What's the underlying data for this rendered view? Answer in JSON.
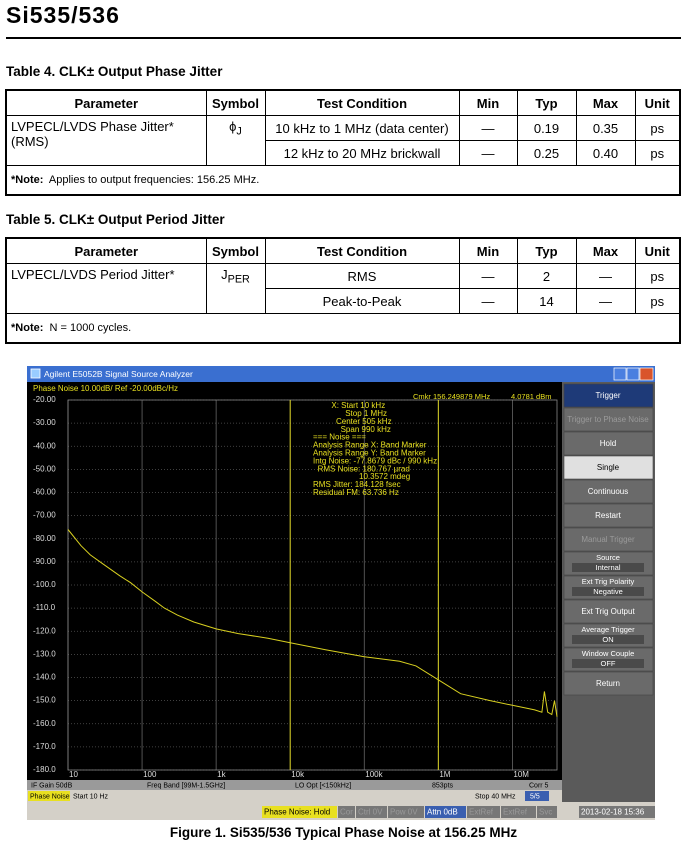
{
  "header": {
    "title": "Si535/536"
  },
  "table4": {
    "caption": "Table 4. CLK± Output Phase Jitter",
    "columns": [
      "Parameter",
      "Symbol",
      "Test Condition",
      "Min",
      "Typ",
      "Max",
      "Unit"
    ],
    "rows": [
      {
        "parameter": "LVPECL/LVDS Phase Jitter* (RMS)",
        "symbol": {
          "main": "ϕ",
          "sub": "J"
        },
        "condition": "10 kHz to 1 MHz (data center)",
        "min": "—",
        "typ": "0.19",
        "max": "0.35",
        "unit": "ps"
      },
      {
        "condition": "12 kHz to 20 MHz brickwall",
        "min": "—",
        "typ": "0.25",
        "max": "0.40",
        "unit": "ps"
      }
    ],
    "note": {
      "label": "*Note:",
      "text": "Applies to output frequencies: 156.25 MHz."
    }
  },
  "table5": {
    "caption": "Table 5. CLK± Output Period Jitter",
    "columns": [
      "Parameter",
      "Symbol",
      "Test Condition",
      "Min",
      "Typ",
      "Max",
      "Unit"
    ],
    "rows": [
      {
        "parameter": "LVPECL/LVDS Period Jitter*",
        "symbol": {
          "main": "J",
          "sub": "PER"
        },
        "condition": "RMS",
        "min": "—",
        "typ": "2",
        "max": "—",
        "unit": "ps"
      },
      {
        "condition": "Peak-to-Peak",
        "min": "—",
        "typ": "14",
        "max": "—",
        "unit": "ps"
      }
    ],
    "note": {
      "label": "*Note:",
      "text": "N = 1000 cycles."
    }
  },
  "analyzer": {
    "window_title": "Agilent E5052B Signal Source Analyzer",
    "chart_data": {
      "type": "line",
      "header": "Phase Noise 10.00dB/ Ref -20.00dBc/Hz",
      "marker": [
        "Cmkr 156.249879 MHz",
        "4.0781 dBm"
      ],
      "readout": [
        "X: Start 10 kHz",
        "Stop 1 MHz",
        "Center 505 kHz",
        "Span 990 kHz",
        "=== Noise ===",
        "Analysis Range X: Band Marker",
        "Analysis Range Y: Band Marker",
        "Intg Noise: -77.8679 dBc / 990 kHz",
        "RMS Noise: 180.767 µrad",
        "10.3572 mdeg",
        "RMS Jitter: 184.128 fsec",
        "Residual FM: 63.736 Hz"
      ],
      "log_x": true,
      "xlim": [
        10,
        40000000
      ],
      "ylim": [
        -180,
        -20
      ],
      "xticks": [
        10,
        100,
        {
          "value": 1000,
          "label": "1k"
        },
        {
          "value": 10000,
          "label": "10k"
        },
        {
          "value": 100000,
          "label": "100k"
        },
        {
          "value": 1000000,
          "label": "1M"
        },
        {
          "value": 10000000,
          "label": "10M"
        }
      ],
      "yticks": [
        {
          "value": -20,
          "label": "-20.00"
        },
        {
          "value": -30,
          "label": "-30.00"
        },
        {
          "value": -40,
          "label": "-40.00"
        },
        {
          "value": -50,
          "label": "-50.00"
        },
        {
          "value": -60,
          "label": "-60.00"
        },
        {
          "value": -70,
          "label": "-70.00"
        },
        {
          "value": -80,
          "label": "-80.00"
        },
        {
          "value": -90,
          "label": "-90.00"
        },
        {
          "value": -100,
          "label": "-100.0"
        },
        {
          "value": -110,
          "label": "-110.0"
        },
        {
          "value": -120,
          "label": "-120.0"
        },
        {
          "value": -130,
          "label": "-130.0"
        },
        {
          "value": -140,
          "label": "-140.0"
        },
        {
          "value": -150,
          "label": "-150.0"
        },
        {
          "value": -160,
          "label": "-160.0"
        },
        {
          "value": -170,
          "label": "-170.0"
        },
        {
          "value": -180,
          "label": "-180.0"
        }
      ],
      "band_markers": [
        10000,
        1000000
      ],
      "grid": true,
      "series": [
        {
          "color": "#d8d020",
          "x": [
            10,
            15,
            20,
            30,
            50,
            70,
            100,
            150,
            200,
            300,
            500,
            1000,
            2000,
            5000,
            10000,
            30000,
            100000,
            300000,
            500000,
            1000000,
            2000000,
            5000000,
            10000000,
            20000000,
            25000000,
            27000000,
            30000000,
            34000000,
            37000000,
            40000000
          ],
          "values": [
            -76,
            -83,
            -87,
            -91,
            -96,
            -99,
            -103,
            -107,
            -110,
            -113,
            -116,
            -119,
            -121,
            -123,
            -125,
            -128,
            -131,
            -133,
            -135,
            -141,
            -147,
            -150,
            -152,
            -154,
            -155,
            -146,
            -155,
            -156,
            -150,
            -157
          ]
        }
      ]
    },
    "info_bar": [
      "IF Gain 50dB",
      "Freq Band [99M-1.5GHz]",
      "LO Opt [<150kHz]",
      "853pts",
      "Corr 5"
    ],
    "sweep_bar": {
      "mode": "Phase Noise",
      "start": "Start 10 Hz",
      "stop": "Stop 40 MHz",
      "page": "5/5"
    },
    "status_bar": [
      "Phase Noise: Hold",
      "Cor",
      "Ctrl 0V",
      "Pow 0V",
      "Attn 0dB",
      "ExtRef",
      "ExtRef",
      "Svc",
      "2013-02-18 15:36"
    ],
    "softkeys": [
      "Trigger",
      "Trigger to Phase Noise",
      "Hold",
      "Single",
      "Continuous",
      "Restart",
      "Manual Trigger",
      [
        "Source",
        "Internal"
      ],
      [
        "Ext Trig Polarity",
        "Negative"
      ],
      "Ext Trig Output",
      [
        "Average Trigger",
        "ON"
      ],
      [
        "Window Couple",
        "OFF"
      ],
      "Return"
    ]
  },
  "figure_caption": "Figure 1. Si535/536 Typical Phase Noise at 156.25 MHz"
}
